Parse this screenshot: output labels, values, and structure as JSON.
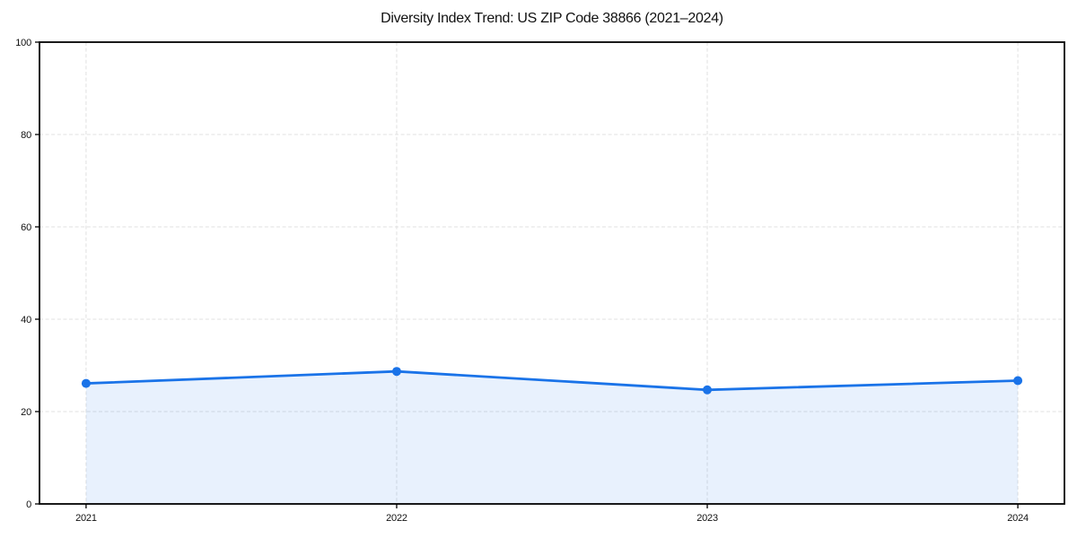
{
  "chart_data": {
    "type": "area",
    "title": "Diversity Index Trend: US ZIP Code 38866 (2021–2024)",
    "x": [
      2021,
      2022,
      2023,
      2024
    ],
    "xticks": [
      "2021",
      "2022",
      "2023",
      "2024"
    ],
    "series": [
      {
        "name": "Diversity Index",
        "values": [
          26.1,
          28.7,
          24.7,
          26.7
        ]
      }
    ],
    "xlabel": "",
    "ylabel": "",
    "ylim": [
      0,
      100
    ],
    "yticks": [
      0,
      20,
      40,
      60,
      80,
      100
    ],
    "x_margin_fraction": 0.05,
    "grid": true,
    "grid_style": "dashed",
    "legend": false,
    "colors": {
      "line": "#1a73e8",
      "marker": "#1a73e8",
      "fill": "#1a73e8",
      "fill_opacity": 0.1,
      "grid": "#e0e0e0",
      "axis": "#000000",
      "text": "#111111",
      "background": "#ffffff"
    }
  }
}
